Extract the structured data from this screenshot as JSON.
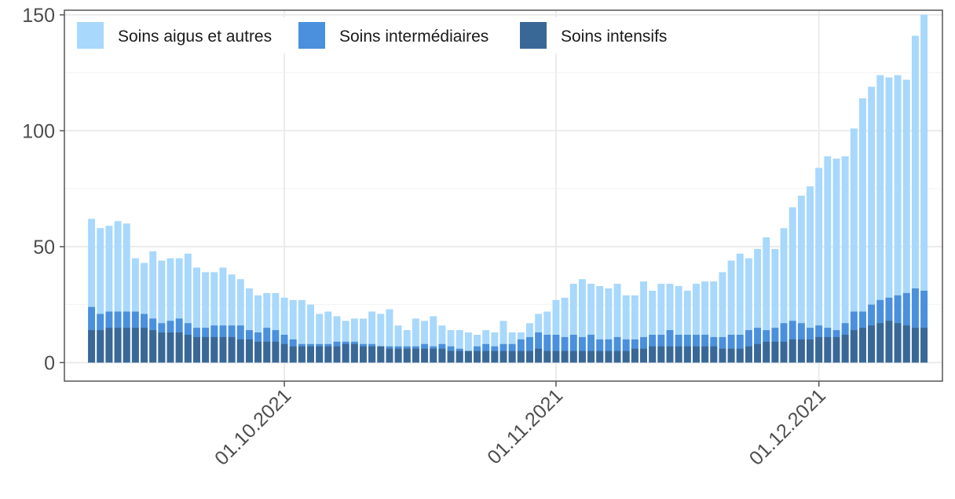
{
  "chart_data": {
    "type": "bar",
    "stacked": false,
    "overlapping": true,
    "x_start": "2021-09-09",
    "x_end": "2021-12-12",
    "x_tick_labels": [
      "01.10.2021",
      "01.11.2021",
      "01.12.2021"
    ],
    "x_tick_dates": [
      "2021-10-01",
      "2021-11-01",
      "2021-12-01"
    ],
    "ylim": [
      -8,
      152
    ],
    "y_ticks": [
      0,
      50,
      100,
      150
    ],
    "y_tick_labels": [
      "0",
      "50",
      "100",
      "150"
    ],
    "xlabel": "",
    "ylabel": "",
    "grid": true,
    "legend_position": "top-left inside",
    "series": [
      {
        "name": "Soins aigus et autres",
        "color": "#a8d8fb",
        "values": [
          62,
          58,
          59,
          61,
          60,
          45,
          43,
          48,
          44,
          45,
          45,
          47,
          41,
          39,
          39,
          41,
          38,
          36,
          32,
          29,
          30,
          30,
          28,
          27,
          27,
          25,
          21,
          22,
          20,
          18,
          19,
          19,
          22,
          21,
          23,
          16,
          14,
          19,
          18,
          20,
          16,
          14,
          14,
          13,
          12,
          14,
          13,
          18,
          13,
          13,
          17,
          21,
          22,
          27,
          28,
          34,
          36,
          34,
          33,
          32,
          34,
          29,
          29,
          35,
          31,
          34,
          34,
          33,
          31,
          34,
          35,
          35,
          39,
          44,
          47,
          45,
          49,
          54,
          49,
          58,
          67,
          72,
          76,
          84,
          89,
          88,
          89,
          101,
          114,
          119,
          124,
          123,
          124,
          122,
          141,
          150
        ]
      },
      {
        "name": "Soins intermédiaires",
        "color": "#4a90dd",
        "values": [
          24,
          21,
          22,
          22,
          22,
          22,
          21,
          19,
          17,
          18,
          19,
          17,
          15,
          15,
          16,
          16,
          16,
          16,
          14,
          13,
          15,
          14,
          12,
          10,
          8,
          8,
          8,
          8,
          9,
          9,
          9,
          8,
          8,
          7,
          7,
          7,
          7,
          7,
          8,
          7,
          8,
          7,
          6,
          5,
          7,
          8,
          7,
          8,
          8,
          10,
          11,
          13,
          12,
          12,
          11,
          12,
          11,
          12,
          10,
          10,
          11,
          10,
          10,
          11,
          12,
          12,
          14,
          12,
          12,
          12,
          12,
          11,
          11,
          12,
          12,
          14,
          15,
          14,
          15,
          17,
          18,
          17,
          15,
          16,
          15,
          14,
          17,
          22,
          22,
          25,
          27,
          28,
          29,
          30,
          32,
          31
        ]
      },
      {
        "name": "Soins intensifs",
        "color": "#3a6896",
        "values": [
          14,
          14,
          15,
          15,
          15,
          15,
          15,
          14,
          13,
          13,
          13,
          12,
          11,
          11,
          11,
          11,
          11,
          10,
          10,
          9,
          9,
          9,
          8,
          7,
          7,
          7,
          7,
          7,
          7,
          8,
          8,
          7,
          7,
          7,
          6,
          6,
          6,
          6,
          6,
          6,
          6,
          5,
          5,
          5,
          5,
          5,
          5,
          5,
          5,
          5,
          5,
          6,
          5,
          5,
          5,
          5,
          5,
          5,
          5,
          5,
          5,
          5,
          6,
          6,
          7,
          7,
          7,
          7,
          7,
          7,
          7,
          7,
          6,
          6,
          6,
          7,
          8,
          9,
          9,
          9,
          10,
          10,
          10,
          11,
          11,
          11,
          12,
          14,
          15,
          16,
          17,
          18,
          17,
          16,
          15,
          15
        ]
      }
    ]
  }
}
